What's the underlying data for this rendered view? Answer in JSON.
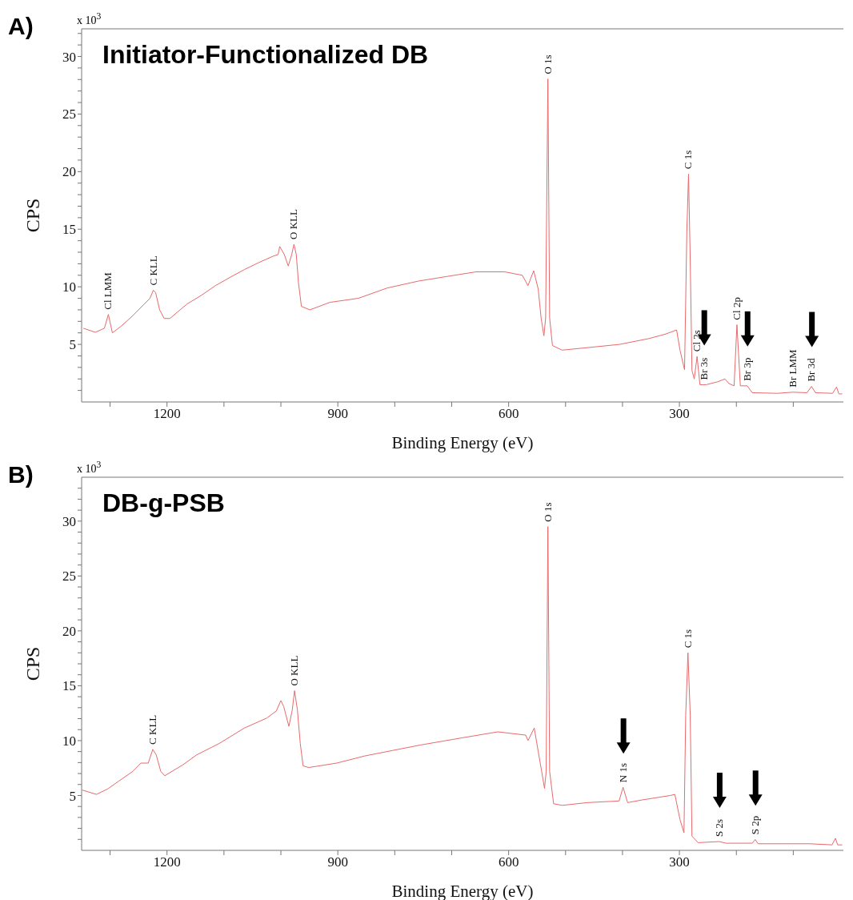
{
  "chart_data": [
    {
      "type": "line",
      "title": "Initiator-Functionalized DB",
      "xlabel": "Binding Energy (eV)",
      "ylabel": "CPS",
      "color": "#e8696b",
      "marker": "none",
      "xlim": [
        1350,
        12
      ],
      "ylim": [
        0,
        32.4
      ],
      "xticks": [
        {
          "value": 1300,
          "label": null
        },
        1200,
        {
          "value": 1100,
          "label": null
        },
        {
          "value": 1000,
          "label": null
        },
        900,
        {
          "value": 800,
          "label": null
        },
        {
          "value": 700,
          "label": null
        },
        600,
        {
          "value": 500,
          "label": null
        },
        {
          "value": 400,
          "label": null
        },
        300,
        {
          "value": 200,
          "label": null
        },
        {
          "value": 100,
          "label": null
        }
      ],
      "yticks": [
        {
          "value": 1,
          "label": null
        },
        {
          "value": 2,
          "label": null
        },
        {
          "value": 3,
          "label": null
        },
        {
          "value": 4,
          "label": null
        },
        5,
        {
          "value": 6,
          "label": null
        },
        {
          "value": 7,
          "label": null
        },
        {
          "value": 8,
          "label": null
        },
        {
          "value": 9,
          "label": null
        },
        10,
        {
          "value": 11,
          "label": null
        },
        {
          "value": 12,
          "label": null
        },
        {
          "value": 13,
          "label": null
        },
        {
          "value": 14,
          "label": null
        },
        15,
        {
          "value": 16,
          "label": null
        },
        {
          "value": 17,
          "label": null
        },
        {
          "value": 18,
          "label": null
        },
        {
          "value": 19,
          "label": null
        },
        20,
        {
          "value": 21,
          "label": null
        },
        {
          "value": 22,
          "label": null
        },
        {
          "value": 23,
          "label": null
        },
        {
          "value": 24,
          "label": null
        },
        25,
        {
          "value": 26,
          "label": null
        },
        {
          "value": 27,
          "label": null
        },
        {
          "value": 28,
          "label": null
        },
        {
          "value": 29,
          "label": null
        },
        30,
        {
          "value": 31,
          "label": null
        },
        {
          "value": 32,
          "label": null
        }
      ],
      "x": [
        1347,
        1326,
        1310,
        1303,
        1296,
        1280,
        1260,
        1240,
        1230,
        1224,
        1220,
        1213,
        1205,
        1195,
        1165,
        1140,
        1115,
        1090,
        1064,
        1039,
        1014,
        1005,
        1002,
        994,
        987,
        981,
        977,
        973,
        969,
        964,
        949,
        914,
        864,
        813,
        758,
        708,
        657,
        607,
        576,
        566,
        556,
        548,
        543,
        538,
        535,
        531,
        528,
        523,
        506,
        455,
        405,
        354,
        324,
        305,
        299,
        291,
        287,
        284,
        281,
        278,
        274,
        269,
        264,
        253,
        233,
        220,
        213,
        204,
        199,
        193,
        181,
        172,
        127,
        101,
        76,
        68,
        61,
        31,
        24,
        20,
        14
      ],
      "values": [
        6.4,
        6.05,
        6.4,
        7.6,
        6.0,
        6.6,
        7.5,
        8.5,
        9.0,
        9.7,
        9.5,
        8.0,
        7.25,
        7.25,
        8.5,
        9.25,
        10.1,
        10.8,
        11.5,
        12.1,
        12.65,
        12.8,
        13.5,
        12.8,
        11.8,
        12.8,
        13.7,
        12.8,
        10.3,
        8.3,
        8.0,
        8.65,
        9.0,
        9.9,
        10.5,
        10.9,
        11.3,
        11.3,
        11.0,
        10.1,
        11.4,
        9.8,
        7.3,
        5.75,
        7.3,
        28.05,
        7.3,
        4.9,
        4.5,
        4.75,
        5.0,
        5.5,
        5.9,
        6.25,
        4.5,
        2.8,
        14.8,
        19.8,
        12.3,
        2.75,
        2.0,
        3.95,
        1.5,
        1.5,
        1.75,
        2.0,
        1.6,
        1.4,
        6.7,
        1.4,
        1.4,
        0.8,
        0.75,
        0.85,
        0.8,
        1.35,
        0.8,
        0.75,
        1.3,
        0.7,
        0.7
      ],
      "annotations": [
        "A)",
        "x 10$^{3}$",
        {
          "text": "Cl LMM",
          "x": 1303,
          "y": 7.6
        },
        {
          "text": "C KLL",
          "x": 1224,
          "y": 9.7
        },
        {
          "text": "O KLL",
          "x": 977,
          "y": 13.7
        },
        {
          "text": "O 1s",
          "x": 531,
          "y": 28.05
        },
        {
          "text": "C 1s",
          "x": 284,
          "y": 19.8
        },
        {
          "text": "Cl 2s",
          "x": 269,
          "y": 3.95
        },
        {
          "text": "Br 3s",
          "x": 257,
          "y": 1.5
        },
        {
          "text": "Cl 2p",
          "x": 199,
          "y": 6.7
        },
        {
          "text": "Br 3p",
          "x": 181,
          "y": 1.4
        },
        {
          "text": "Br LMM",
          "x": 101,
          "y": 0.85
        },
        {
          "text": "Br 3d",
          "x": 68,
          "y": 1.35
        }
      ]
    },
    {
      "type": "line",
      "title": "DB-g-PSB",
      "xlabel": "Binding Energy (eV)",
      "ylabel": "CPS",
      "color": "#e8696b",
      "marker": "none",
      "xlim": [
        1350,
        12
      ],
      "ylim": [
        0,
        34
      ],
      "xticks": [
        {
          "value": 1300,
          "label": null
        },
        1200,
        {
          "value": 1100,
          "label": null
        },
        {
          "value": 1000,
          "label": null
        },
        900,
        {
          "value": 800,
          "label": null
        },
        {
          "value": 700,
          "label": null
        },
        600,
        {
          "value": 500,
          "label": null
        },
        {
          "value": 400,
          "label": null
        },
        300,
        {
          "value": 200,
          "label": null
        },
        {
          "value": 100,
          "label": null
        }
      ],
      "yticks": [
        {
          "value": 1,
          "label": null
        },
        {
          "value": 2,
          "label": null
        },
        {
          "value": 3,
          "label": null
        },
        {
          "value": 4,
          "label": null
        },
        5,
        {
          "value": 6,
          "label": null
        },
        {
          "value": 7,
          "label": null
        },
        {
          "value": 8,
          "label": null
        },
        {
          "value": 9,
          "label": null
        },
        10,
        {
          "value": 11,
          "label": null
        },
        {
          "value": 12,
          "label": null
        },
        {
          "value": 13,
          "label": null
        },
        {
          "value": 14,
          "label": null
        },
        15,
        {
          "value": 16,
          "label": null
        },
        {
          "value": 17,
          "label": null
        },
        {
          "value": 18,
          "label": null
        },
        {
          "value": 19,
          "label": null
        },
        20,
        {
          "value": 21,
          "label": null
        },
        {
          "value": 22,
          "label": null
        },
        {
          "value": 23,
          "label": null
        },
        {
          "value": 24,
          "label": null
        },
        25,
        {
          "value": 26,
          "label": null
        },
        {
          "value": 27,
          "label": null
        },
        {
          "value": 28,
          "label": null
        },
        {
          "value": 29,
          "label": null
        },
        30,
        {
          "value": 31,
          "label": null
        },
        {
          "value": 32,
          "label": null
        },
        {
          "value": 33,
          "label": null
        }
      ],
      "x": [
        1349,
        1324,
        1304,
        1285,
        1260,
        1246,
        1233,
        1225,
        1219,
        1211,
        1204,
        1172,
        1148,
        1108,
        1064,
        1025,
        1008,
        1000,
        995,
        986,
        980,
        976,
        971,
        966,
        961,
        951,
        902,
        853,
        804,
        755,
        682,
        619,
        570,
        566,
        555,
        548,
        542,
        537,
        534,
        531,
        528,
        521,
        506,
        462,
        406,
        399,
        391,
        365,
        316,
        308,
        299,
        292,
        289,
        285,
        281,
        278,
        267,
        230,
        218,
        172,
        167,
        162,
        120,
        71,
        32,
        26,
        22,
        14
      ],
      "values": [
        5.5,
        5.1,
        5.6,
        6.3,
        7.2,
        7.95,
        7.95,
        9.2,
        8.7,
        7.2,
        6.8,
        7.8,
        8.7,
        9.75,
        11.15,
        12.05,
        12.7,
        13.65,
        13.1,
        11.3,
        12.8,
        14.55,
        12.8,
        9.75,
        7.7,
        7.55,
        7.95,
        8.6,
        9.1,
        9.6,
        10.25,
        10.8,
        10.5,
        10.0,
        11.15,
        9.0,
        7.2,
        5.65,
        7.2,
        29.5,
        7.2,
        4.25,
        4.1,
        4.35,
        4.5,
        5.75,
        4.35,
        4.6,
        5.0,
        5.1,
        2.8,
        1.6,
        12.3,
        18.0,
        12.3,
        1.3,
        0.7,
        0.8,
        0.65,
        0.65,
        1.0,
        0.6,
        0.6,
        0.6,
        0.5,
        1.1,
        0.5,
        0.5
      ],
      "annotations": [
        "B)",
        "x 10$^{3}$",
        {
          "text": "C KLL",
          "x": 1225,
          "y": 9.2
        },
        {
          "text": "O KLL",
          "x": 976,
          "y": 14.55
        },
        {
          "text": "O 1s",
          "x": 531,
          "y": 29.5
        },
        {
          "text": "N 1s",
          "x": 399,
          "y": 5.75
        },
        {
          "text": "C 1s",
          "x": 285,
          "y": 18.0
        },
        {
          "text": "S 2s",
          "x": 230,
          "y": 0.8
        },
        {
          "text": "S 2p",
          "x": 167,
          "y": 1.0
        }
      ]
    }
  ]
}
